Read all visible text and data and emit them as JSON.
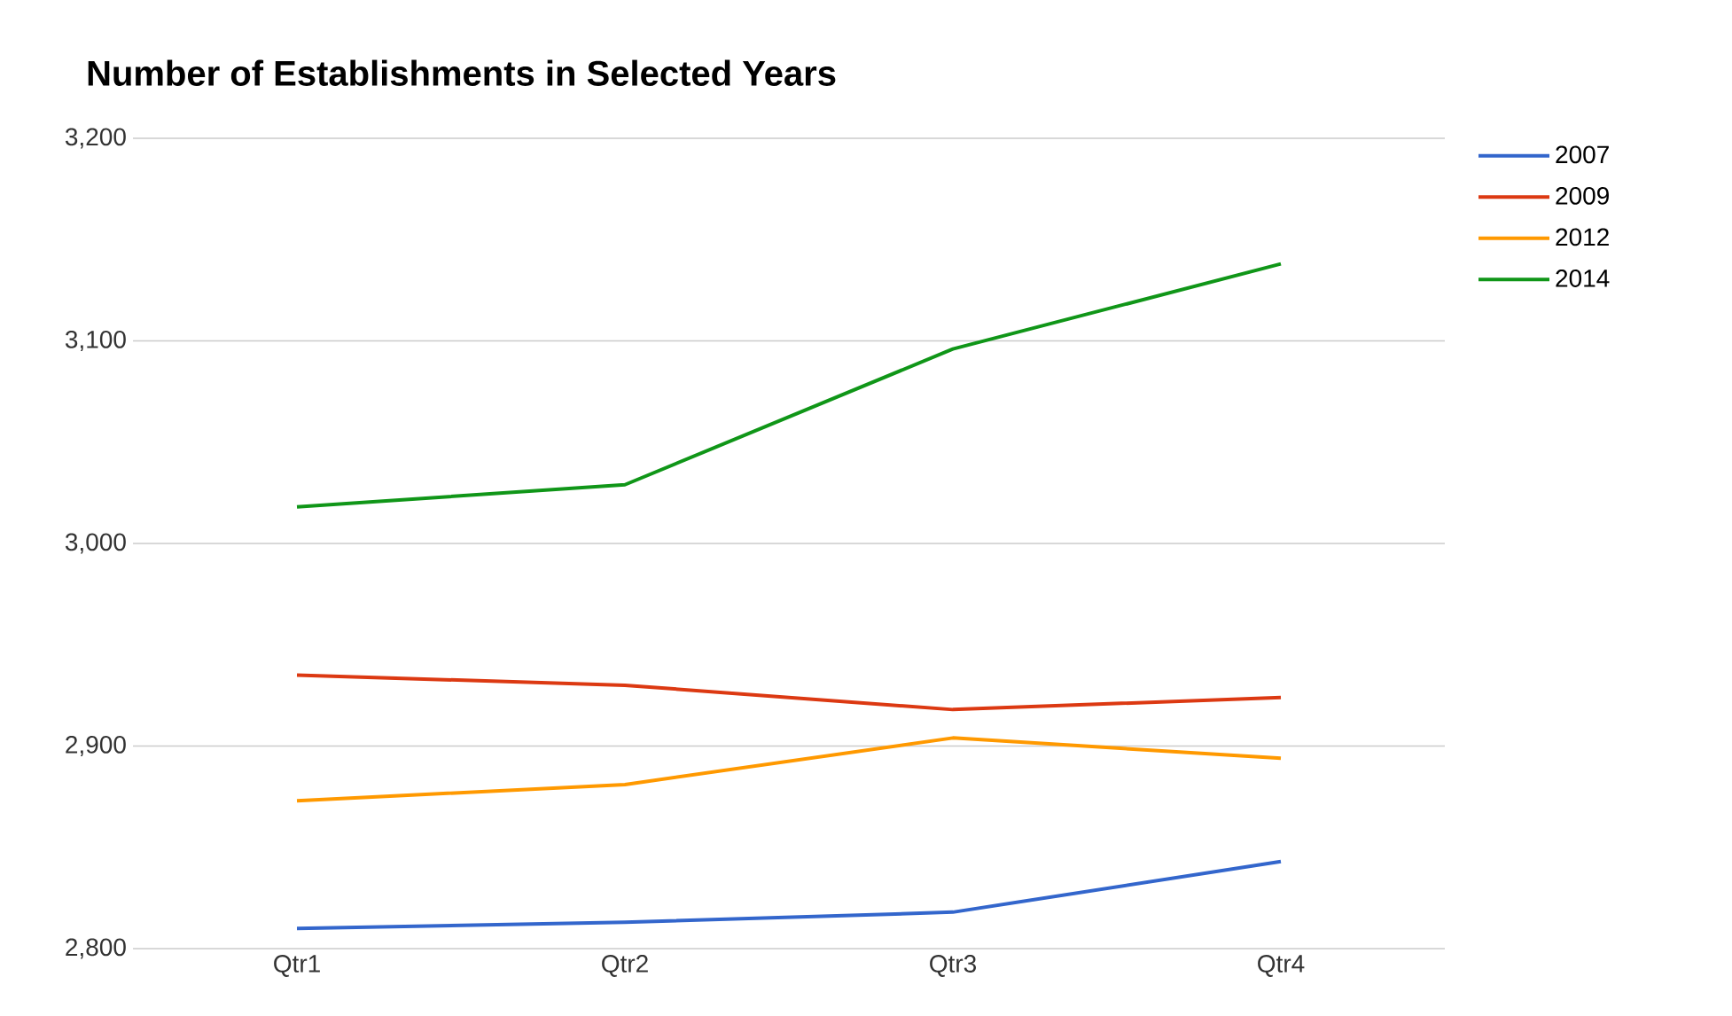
{
  "chart_data": {
    "type": "line",
    "title": "Number of Establishments in Selected Years",
    "categories": [
      "Qtr1",
      "Qtr2",
      "Qtr3",
      "Qtr4"
    ],
    "series": [
      {
        "name": "2007",
        "color": "#3366cc",
        "values": [
          2810,
          2813,
          2818,
          2843
        ]
      },
      {
        "name": "2009",
        "color": "#dc3912",
        "values": [
          2935,
          2930,
          2918,
          2924
        ]
      },
      {
        "name": "2012",
        "color": "#ff9900",
        "values": [
          2873,
          2881,
          2904,
          2894
        ]
      },
      {
        "name": "2014",
        "color": "#109618",
        "values": [
          3018,
          3029,
          3096,
          3138
        ]
      }
    ],
    "ylim": [
      2800,
      3200
    ],
    "yticks": [
      {
        "value": 2800,
        "label": "2,800"
      },
      {
        "value": 2900,
        "label": "2,900"
      },
      {
        "value": 3000,
        "label": "3,000"
      },
      {
        "value": 3100,
        "label": "3,100"
      },
      {
        "value": 3200,
        "label": "3,200"
      }
    ],
    "grid": "y",
    "legend": "top right",
    "marker": "none",
    "line_style": "solid"
  }
}
